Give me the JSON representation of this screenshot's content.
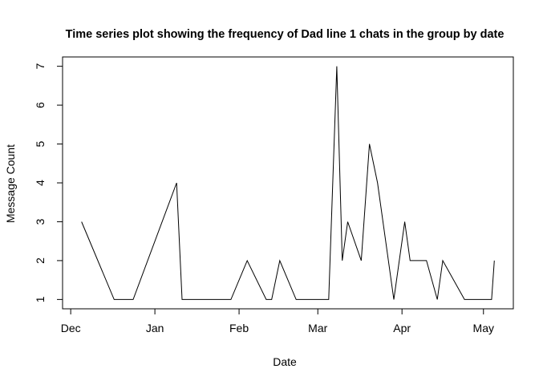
{
  "chart_data": {
    "type": "line",
    "title": "Time series plot showing the frequency of Dad line 1 chats in the group by date",
    "xlabel": "Date",
    "ylabel": "Message Count",
    "x_ticks": [
      {
        "label": "Dec",
        "date": "2019-12-01"
      },
      {
        "label": "Jan",
        "date": "2020-01-01"
      },
      {
        "label": "Feb",
        "date": "2020-02-01"
      },
      {
        "label": "Mar",
        "date": "2020-03-01"
      },
      {
        "label": "Apr",
        "date": "2020-04-01"
      },
      {
        "label": "May",
        "date": "2020-05-01"
      }
    ],
    "y_ticks": [
      1,
      2,
      3,
      4,
      5,
      6,
      7
    ],
    "xlim": [
      "2019-11-28",
      "2020-05-12"
    ],
    "ylim": [
      0.76,
      7.24
    ],
    "grid": false,
    "series": [
      {
        "color": "#000000",
        "points": [
          {
            "x": "2019-12-05",
            "y": 3
          },
          {
            "x": "2019-12-17",
            "y": 1
          },
          {
            "x": "2019-12-24",
            "y": 1
          },
          {
            "x": "2020-01-09",
            "y": 4
          },
          {
            "x": "2020-01-11",
            "y": 1
          },
          {
            "x": "2020-01-29",
            "y": 1
          },
          {
            "x": "2020-02-04",
            "y": 2
          },
          {
            "x": "2020-02-11",
            "y": 1
          },
          {
            "x": "2020-02-13",
            "y": 1
          },
          {
            "x": "2020-02-16",
            "y": 2
          },
          {
            "x": "2020-02-22",
            "y": 1
          },
          {
            "x": "2020-03-05",
            "y": 1
          },
          {
            "x": "2020-03-08",
            "y": 7
          },
          {
            "x": "2020-03-10",
            "y": 2
          },
          {
            "x": "2020-03-12",
            "y": 3
          },
          {
            "x": "2020-03-17",
            "y": 2
          },
          {
            "x": "2020-03-20",
            "y": 5
          },
          {
            "x": "2020-03-23",
            "y": 4
          },
          {
            "x": "2020-03-29",
            "y": 1
          },
          {
            "x": "2020-04-02",
            "y": 3
          },
          {
            "x": "2020-04-04",
            "y": 2
          },
          {
            "x": "2020-04-10",
            "y": 2
          },
          {
            "x": "2020-04-14",
            "y": 1
          },
          {
            "x": "2020-04-16",
            "y": 2
          },
          {
            "x": "2020-04-24",
            "y": 1
          },
          {
            "x": "2020-05-04",
            "y": 1
          },
          {
            "x": "2020-05-05",
            "y": 2
          }
        ]
      }
    ]
  }
}
